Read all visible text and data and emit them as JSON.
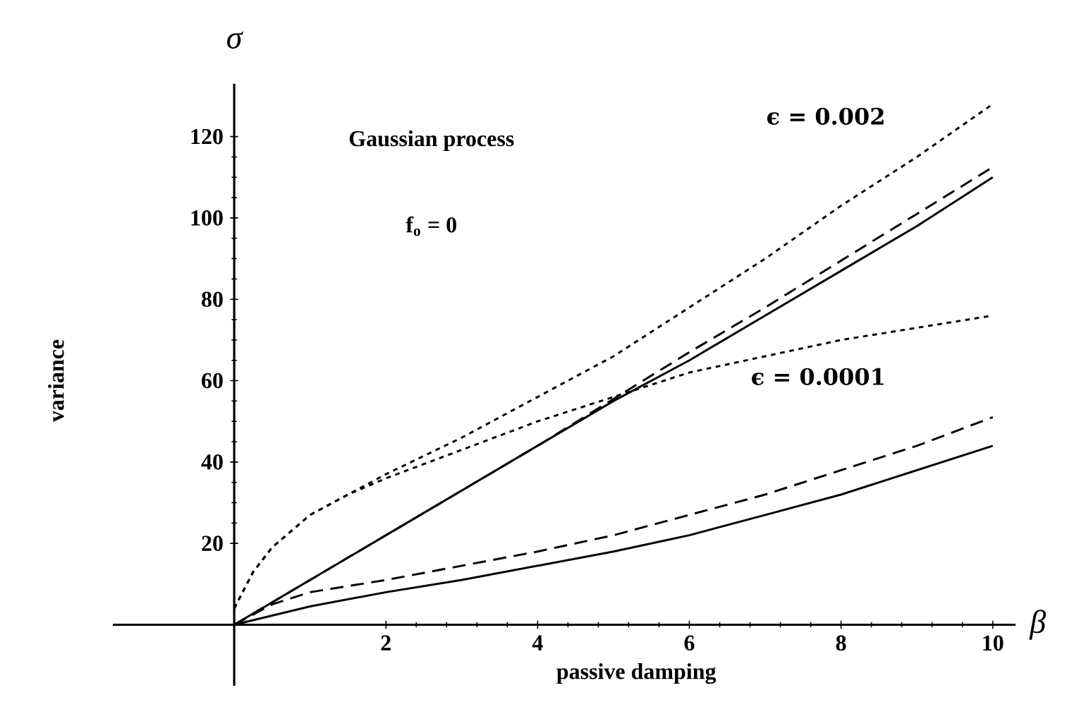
{
  "chart_data": {
    "type": "line",
    "xlabel": "passive damping",
    "ylabel": "variance",
    "annotations": [
      "Gaussian process",
      "f$_{o}$ = 0",
      "ϵ = 0.002",
      "ϵ = 0.0001",
      "σ",
      "β"
    ],
    "xlim": [
      -1.6,
      10.3
    ],
    "ylim": [
      -15,
      133
    ],
    "xticks": [
      2,
      4,
      6,
      8,
      10
    ],
    "yticks": [
      20,
      40,
      60,
      80,
      100,
      120
    ],
    "grid": false,
    "marker": "none",
    "series": [
      {
        "color": "#000000",
        "line_style": "dotted",
        "x": [
          0,
          0.25,
          0.5,
          1,
          1.5,
          2,
          3,
          4,
          5,
          6,
          7,
          8,
          9,
          10
        ],
        "values": [
          4,
          13,
          19,
          27,
          32,
          37,
          46,
          56,
          66,
          78,
          90,
          103,
          115,
          128
        ]
      },
      {
        "color": "#000000",
        "line_style": "dashed",
        "x": [
          0,
          2,
          4,
          5,
          6,
          7,
          8,
          9,
          10
        ],
        "values": [
          0,
          22,
          44,
          55.5,
          67,
          78,
          89.5,
          101,
          112.5
        ]
      },
      {
        "color": "#000000",
        "line_style": "solid",
        "x": [
          0,
          1,
          2,
          3,
          4,
          5,
          6,
          7,
          8,
          9,
          10
        ],
        "values": [
          0,
          11,
          22,
          33,
          44,
          55,
          65,
          76,
          87,
          98,
          110
        ]
      },
      {
        "color": "#000000",
        "line_style": "dotted",
        "x": [
          0,
          0.25,
          0.5,
          1,
          1.5,
          2,
          3,
          4,
          5,
          6,
          7,
          8,
          9,
          10
        ],
        "values": [
          4,
          13,
          19,
          27,
          32,
          36,
          43,
          50,
          56,
          62,
          66,
          70,
          73,
          76
        ]
      },
      {
        "color": "#000000",
        "line_style": "dashed",
        "x": [
          0,
          0.5,
          1,
          2,
          3,
          4,
          5,
          6,
          7,
          8,
          9,
          10
        ],
        "values": [
          0,
          5,
          8,
          11,
          14.5,
          18,
          22,
          27,
          32,
          38,
          44,
          51
        ]
      },
      {
        "color": "#000000",
        "line_style": "solid",
        "x": [
          0,
          1,
          2,
          3,
          4,
          5,
          6,
          7,
          8,
          9,
          10
        ],
        "values": [
          0,
          4.5,
          8,
          11,
          14.5,
          18,
          22,
          27,
          32,
          38,
          44
        ]
      }
    ]
  }
}
